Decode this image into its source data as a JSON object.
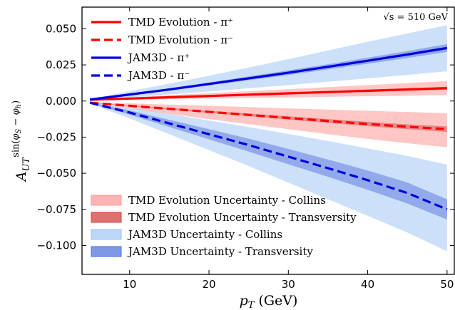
{
  "chart_data": {
    "type": "line",
    "xlabel": "p_T (GeV)",
    "ylabel": "A_UT^sin(φS − φh)",
    "annotation": "√s = 510 GeV",
    "xlim": [
      4,
      51
    ],
    "ylim": [
      -0.12,
      0.065
    ],
    "xticks": [
      10,
      20,
      30,
      40,
      50
    ],
    "yticks": [
      -0.1,
      -0.075,
      -0.05,
      -0.025,
      0.0,
      0.025,
      0.05
    ],
    "ytick_labels": [
      "−0.100",
      "−0.075",
      "−0.050",
      "−0.025",
      "0.000",
      "0.025",
      "0.050"
    ],
    "xtick_labels": [
      "10",
      "20",
      "30",
      "40",
      "50"
    ],
    "x": [
      5,
      10,
      15,
      20,
      25,
      30,
      35,
      40,
      45,
      50
    ],
    "series": [
      {
        "name": "TMD Evolution - π⁺",
        "color": "#ff0000",
        "dash": "solid",
        "values": [
          0.0009,
          0.0017,
          0.0026,
          0.0035,
          0.0044,
          0.0053,
          0.0062,
          0.0071,
          0.008,
          0.0089
        ]
      },
      {
        "name": "TMD Evolution - π⁻",
        "color": "#ff0000",
        "dash": "dashed",
        "values": [
          -0.0012,
          -0.0033,
          -0.0054,
          -0.0075,
          -0.0096,
          -0.0117,
          -0.0138,
          -0.0159,
          -0.0178,
          -0.0195
        ]
      },
      {
        "name": "JAM3D - π⁺",
        "color": "#0000dd",
        "dash": "solid",
        "values": [
          0.001,
          0.0045,
          0.008,
          0.0118,
          0.0157,
          0.0196,
          0.0237,
          0.0279,
          0.0322,
          0.0367
        ]
      },
      {
        "name": "JAM3D - π⁻",
        "color": "#0000dd",
        "dash": "dashed",
        "values": [
          -0.0012,
          -0.008,
          -0.0155,
          -0.023,
          -0.0305,
          -0.0385,
          -0.0465,
          -0.0548,
          -0.0637,
          -0.075
        ]
      }
    ],
    "bands": [
      {
        "name": "TMD Evolution Uncertainty - Collins",
        "color": "#ffb3b3",
        "lower": [
          0.0007,
          0.0009,
          0.0013,
          0.0017,
          0.0021,
          0.0025,
          0.0029,
          0.0033,
          0.0037,
          0.0042
        ],
        "upper": [
          0.0011,
          0.0025,
          0.004,
          0.0054,
          0.0068,
          0.0082,
          0.0096,
          0.011,
          0.0124,
          0.0138
        ]
      },
      {
        "name": "TMD Evolution Uncertainty - Collins",
        "color": "#ffb3b3",
        "lower": [
          -0.0016,
          -0.0055,
          -0.009,
          -0.0125,
          -0.016,
          -0.0195,
          -0.023,
          -0.0262,
          -0.0292,
          -0.032
        ],
        "upper": [
          -0.0009,
          -0.0016,
          -0.0025,
          -0.0033,
          -0.0042,
          -0.0051,
          -0.0059,
          -0.0068,
          -0.0076,
          -0.0085
        ]
      },
      {
        "name": "TMD Evolution Uncertainty - Transversity",
        "color": "#e07070",
        "lower": [
          0.0008,
          0.0015,
          0.0023,
          0.0031,
          0.0039,
          0.0047,
          0.0055,
          0.0063,
          0.0071,
          0.0079
        ],
        "upper": [
          0.001,
          0.0019,
          0.0029,
          0.0039,
          0.0049,
          0.0059,
          0.0069,
          0.0079,
          0.0089,
          0.0099
        ]
      },
      {
        "name": "TMD Evolution Uncertainty - Transversity",
        "color": "#e07070",
        "lower": [
          -0.0013,
          -0.0036,
          -0.0059,
          -0.0082,
          -0.0105,
          -0.0128,
          -0.0151,
          -0.0174,
          -0.0195,
          -0.0214
        ],
        "upper": [
          -0.0011,
          -0.003,
          -0.0049,
          -0.0068,
          -0.0087,
          -0.0106,
          -0.0125,
          -0.0144,
          -0.0161,
          -0.0176
        ]
      },
      {
        "name": "JAM3D Uncertainty - Collins",
        "color": "#bcd6f8",
        "lower": [
          0.0006,
          0.0025,
          0.0045,
          0.0066,
          0.0088,
          0.011,
          0.0133,
          0.0157,
          0.0181,
          0.0206
        ],
        "upper": [
          0.0014,
          0.0068,
          0.012,
          0.0175,
          0.0232,
          0.029,
          0.035,
          0.041,
          0.0468,
          0.0525
        ]
      },
      {
        "name": "JAM3D Uncertainty - Collins",
        "color": "#bcd6f8",
        "lower": [
          -0.0018,
          -0.012,
          -0.023,
          -0.034,
          -0.045,
          -0.0565,
          -0.068,
          -0.0795,
          -0.091,
          -0.104
        ],
        "upper": [
          -0.0008,
          -0.0048,
          -0.009,
          -0.0135,
          -0.018,
          -0.0228,
          -0.0277,
          -0.0328,
          -0.038,
          -0.044
        ]
      },
      {
        "name": "JAM3D Uncertainty - Transversity",
        "color": "#7e98e6",
        "lower": [
          0.0009,
          0.004,
          0.0072,
          0.0108,
          0.0144,
          0.018,
          0.0219,
          0.0258,
          0.0298,
          0.034
        ],
        "upper": [
          0.0011,
          0.005,
          0.0088,
          0.0128,
          0.017,
          0.0212,
          0.0255,
          0.03,
          0.0346,
          0.0394
        ]
      },
      {
        "name": "JAM3D Uncertainty - Transversity",
        "color": "#7e98e6",
        "lower": [
          -0.0014,
          -0.0095,
          -0.018,
          -0.0265,
          -0.035,
          -0.0438,
          -0.0525,
          -0.0615,
          -0.071,
          -0.082
        ],
        "upper": [
          -0.001,
          -0.0065,
          -0.013,
          -0.0195,
          -0.026,
          -0.0332,
          -0.0405,
          -0.0481,
          -0.0564,
          -0.068
        ]
      }
    ],
    "legend_upper": [
      "TMD Evolution - π⁺",
      "TMD Evolution - π⁻",
      "JAM3D - π⁺",
      "JAM3D - π⁻"
    ],
    "legend_lower": [
      {
        "label": "TMD Evolution Uncertainty - Collins",
        "color": "#ffb3b3",
        "edge": "#ff9999"
      },
      {
        "label": "TMD Evolution Uncertainty - Transversity",
        "color": "#e07070",
        "edge": "#cc4444"
      },
      {
        "label": "JAM3D Uncertainty - Collins",
        "color": "#bcd6f8",
        "edge": "#9fc2f3"
      },
      {
        "label": "JAM3D Uncertainty - Transversity",
        "color": "#7e98e6",
        "edge": "#4d6fd8"
      }
    ],
    "legend_placement": [
      "upper-left",
      "lower-left"
    ],
    "grid": false
  }
}
